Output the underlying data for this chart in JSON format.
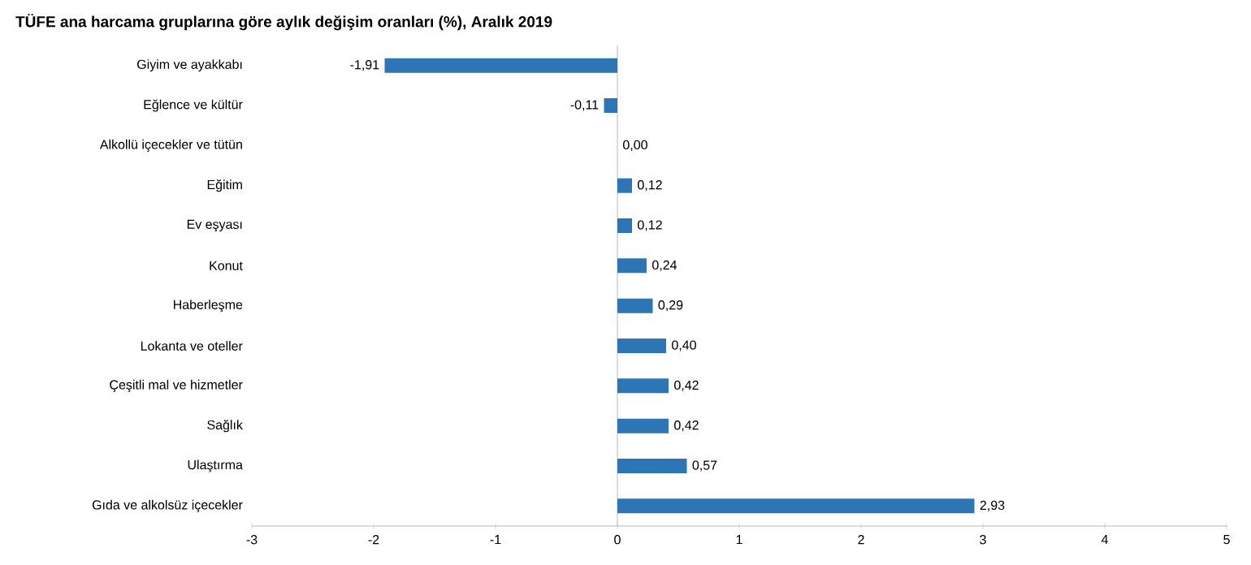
{
  "chart_data": {
    "type": "bar",
    "orientation": "horizontal",
    "title": "TÜFE ana harcama gruplarına göre aylık değişim oranları (%), Aralık 2019",
    "categories": [
      "Giyim ve ayakkabı",
      "Eğlence ve kültür",
      "Alkollü içecekler ve tütün",
      "Eğitim",
      "Ev eşyası",
      "Konut",
      "Haberleşme",
      "Lokanta ve oteller",
      "Çeşitli mal ve hizmetler",
      "Sağlık",
      "Ulaştırma",
      "Gıda ve alkolsüz içecekler"
    ],
    "values": [
      -1.91,
      -0.11,
      0.0,
      0.12,
      0.12,
      0.24,
      0.29,
      0.4,
      0.42,
      0.42,
      0.57,
      2.93
    ],
    "value_labels": [
      "-1,91",
      "-0,11",
      "0,00",
      "0,12",
      "0,12",
      "0,24",
      "0,29",
      "0,40",
      "0,42",
      "0,42",
      "0,57",
      "2,93"
    ],
    "color": "#2e75b6",
    "xlim": [
      -3,
      5
    ],
    "xticks": [
      -3,
      -2,
      -1,
      0,
      1,
      2,
      3,
      4,
      5
    ]
  }
}
